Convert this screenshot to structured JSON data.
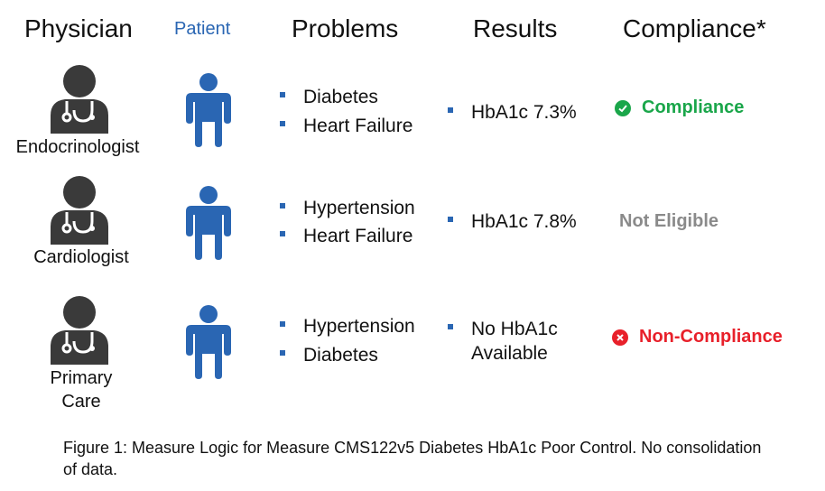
{
  "headers": {
    "physician": "Physician",
    "patient": "Patient",
    "problems": "Problems",
    "results": "Results",
    "compliance": "Compliance*"
  },
  "rows": [
    {
      "specialty": "Endocrinologist",
      "problems": [
        "Diabetes",
        "Heart Failure"
      ],
      "result": "HbA1c 7.3%",
      "status": "Compliance",
      "status_color": "#1aa64a",
      "status_icon": "check-circle-icon"
    },
    {
      "specialty": "Cardiologist",
      "problems": [
        "Hypertension",
        "Heart Failure"
      ],
      "result": "HbA1c 7.8%",
      "status": "Not Eligible",
      "status_color": "#8a8a8a",
      "status_icon": ""
    },
    {
      "specialty": "Primary Care",
      "problems": [
        "Hypertension",
        "Diabetes"
      ],
      "result_lines": [
        "No HbA1c",
        "Available"
      ],
      "status": "Non-Compliance",
      "status_color": "#e8202a",
      "status_icon": "x-circle-icon"
    }
  ],
  "colors": {
    "physician_icon": "#3a3a3a",
    "patient_icon": "#2a66b3",
    "bullet": "#2a66b3"
  },
  "caption": "Figure 1: Measure Logic for Measure CMS122v5 Diabetes HbA1c Poor Control. No consolidation of data."
}
